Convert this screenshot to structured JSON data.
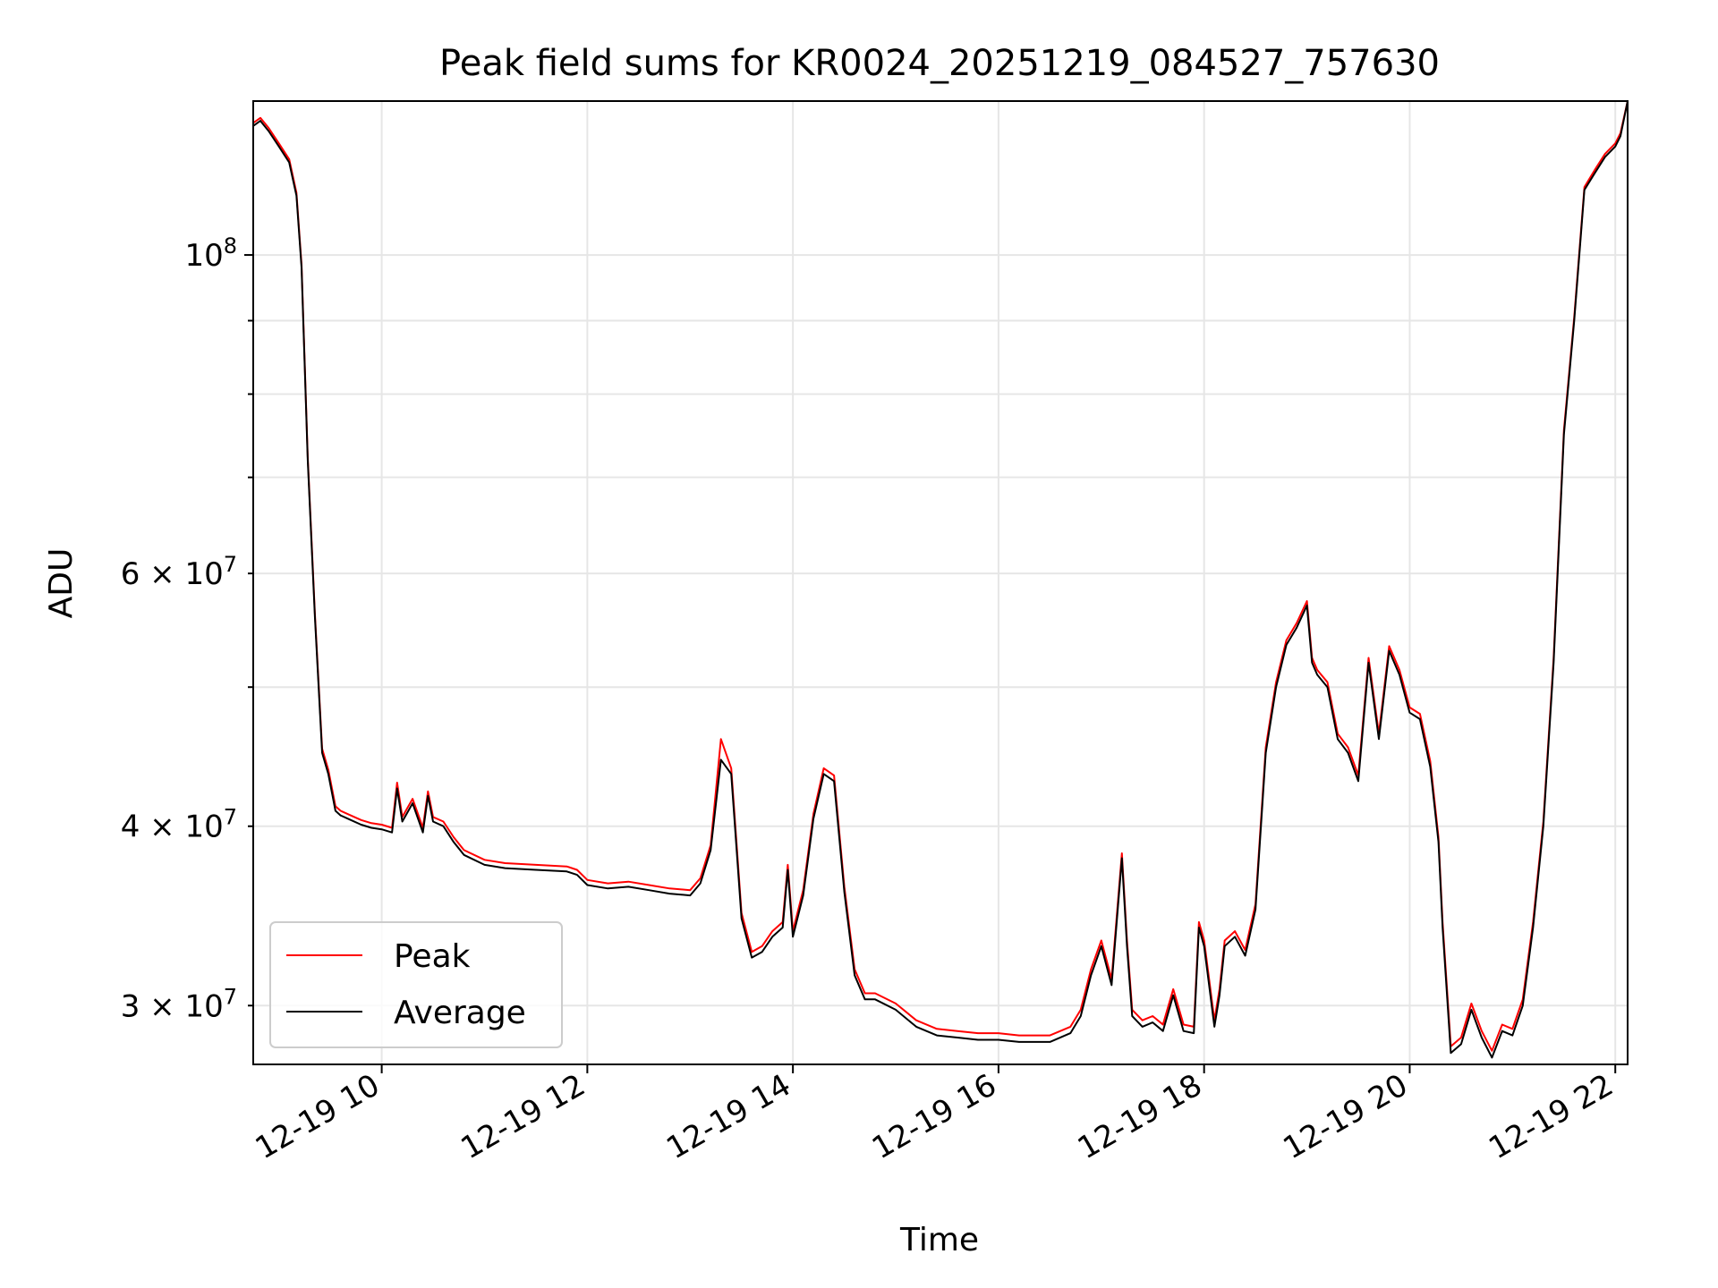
{
  "chart_data": {
    "type": "line",
    "title": "Peak field sums for KR0024_20251219_084527_757630",
    "xlabel": "Time",
    "ylabel": "ADU",
    "y_scale": "log",
    "x_range_hours": [
      8.75,
      22.12
    ],
    "ylim": [
      27300000,
      128000000
    ],
    "grid": true,
    "legend": {
      "position": "lower-left",
      "entries": [
        "Peak",
        "Average"
      ]
    },
    "colors": {
      "peak": "#ff0000",
      "average": "#000000",
      "grid": "#e6e6e6"
    },
    "xticks": [
      {
        "hour": 10,
        "label": "12-19 10"
      },
      {
        "hour": 12,
        "label": "12-19 12"
      },
      {
        "hour": 14,
        "label": "12-19 14"
      },
      {
        "hour": 16,
        "label": "12-19 16"
      },
      {
        "hour": 18,
        "label": "12-19 18"
      },
      {
        "hour": 20,
        "label": "12-19 20"
      },
      {
        "hour": 22,
        "label": "12-19 22"
      }
    ],
    "yticks_major": [
      {
        "value": 100000000,
        "base": "10",
        "exp": "8"
      }
    ],
    "yticks_minor": [
      {
        "value": 30000000,
        "mant": "3",
        "exp": "7"
      },
      {
        "value": 40000000,
        "mant": "4",
        "exp": "7"
      },
      {
        "value": 60000000,
        "mant": "6",
        "exp": "7"
      }
    ],
    "yticks_minor_unlabeled": [
      50000000,
      70000000,
      80000000,
      90000000
    ],
    "series": [
      {
        "name": "Average",
        "x": [
          8.75,
          8.82,
          8.9,
          9.0,
          9.1,
          9.17,
          9.22,
          9.28,
          9.35,
          9.42,
          9.48,
          9.55,
          9.6,
          9.7,
          9.8,
          9.9,
          10.0,
          10.1,
          10.15,
          10.2,
          10.3,
          10.4,
          10.45,
          10.5,
          10.6,
          10.7,
          10.8,
          11.0,
          11.2,
          11.5,
          11.8,
          11.9,
          12.0,
          12.2,
          12.4,
          12.6,
          12.8,
          13.0,
          13.1,
          13.2,
          13.3,
          13.4,
          13.5,
          13.6,
          13.7,
          13.8,
          13.9,
          13.95,
          14.0,
          14.1,
          14.2,
          14.3,
          14.4,
          14.5,
          14.6,
          14.7,
          14.8,
          15.0,
          15.2,
          15.4,
          15.6,
          15.8,
          16.0,
          16.2,
          16.5,
          16.7,
          16.8,
          16.9,
          17.0,
          17.1,
          17.2,
          17.25,
          17.3,
          17.4,
          17.5,
          17.6,
          17.7,
          17.8,
          17.9,
          17.95,
          18.0,
          18.1,
          18.15,
          18.2,
          18.3,
          18.4,
          18.5,
          18.6,
          18.7,
          18.8,
          18.9,
          19.0,
          19.05,
          19.1,
          19.2,
          19.3,
          19.4,
          19.5,
          19.6,
          19.7,
          19.8,
          19.9,
          20.0,
          20.1,
          20.2,
          20.28,
          20.32,
          20.4,
          20.5,
          20.6,
          20.7,
          20.8,
          20.9,
          21.0,
          21.1,
          21.2,
          21.3,
          21.4,
          21.5,
          21.6,
          21.7,
          21.8,
          21.9,
          22.0,
          22.05,
          22.12
        ],
        "y": [
          123000000,
          124000000,
          122000000,
          119000000,
          116000000,
          110000000,
          98000000,
          72000000,
          56000000,
          45000000,
          43500000,
          41000000,
          40700000,
          40400000,
          40100000,
          39900000,
          39800000,
          39600000,
          42500000,
          40300000,
          41500000,
          39600000,
          42000000,
          40300000,
          40000000,
          39000000,
          38200000,
          37600000,
          37400000,
          37300000,
          37200000,
          37000000,
          36400000,
          36200000,
          36300000,
          36100000,
          35900000,
          35800000,
          36500000,
          38500000,
          44500000,
          43500000,
          34500000,
          32400000,
          32700000,
          33500000,
          34000000,
          37300000,
          33500000,
          35800000,
          40500000,
          43500000,
          43000000,
          36000000,
          31500000,
          30300000,
          30300000,
          29800000,
          29000000,
          28600000,
          28500000,
          28400000,
          28400000,
          28300000,
          28300000,
          28700000,
          29500000,
          31500000,
          33000000,
          31000000,
          38000000,
          33000000,
          29500000,
          29000000,
          29200000,
          28800000,
          30500000,
          28800000,
          28700000,
          34000000,
          33000000,
          29000000,
          30500000,
          33000000,
          33500000,
          32500000,
          35000000,
          45000000,
          50000000,
          53500000,
          55000000,
          57000000,
          52000000,
          51000000,
          50000000,
          46000000,
          45000000,
          43000000,
          52000000,
          46000000,
          53000000,
          51000000,
          48000000,
          47500000,
          44000000,
          39000000,
          34000000,
          27800000,
          28200000,
          29800000,
          28500000,
          27600000,
          28800000,
          28600000,
          30000000,
          34000000,
          40000000,
          52000000,
          75000000,
          90000000,
          111000000,
          114000000,
          117000000,
          119000000,
          121000000,
          128000000
        ]
      },
      {
        "name": "Peak",
        "x": [
          8.75,
          8.82,
          8.9,
          9.0,
          9.1,
          9.17,
          9.22,
          9.28,
          9.35,
          9.42,
          9.48,
          9.55,
          9.6,
          9.7,
          9.8,
          9.9,
          10.0,
          10.1,
          10.15,
          10.2,
          10.3,
          10.4,
          10.45,
          10.5,
          10.6,
          10.7,
          10.8,
          11.0,
          11.2,
          11.5,
          11.8,
          11.9,
          12.0,
          12.2,
          12.4,
          12.6,
          12.8,
          13.0,
          13.1,
          13.2,
          13.3,
          13.4,
          13.5,
          13.6,
          13.7,
          13.8,
          13.9,
          13.95,
          14.0,
          14.1,
          14.2,
          14.3,
          14.4,
          14.5,
          14.6,
          14.7,
          14.8,
          15.0,
          15.2,
          15.4,
          15.6,
          15.8,
          16.0,
          16.2,
          16.5,
          16.7,
          16.8,
          16.9,
          17.0,
          17.1,
          17.2,
          17.25,
          17.3,
          17.4,
          17.5,
          17.6,
          17.7,
          17.8,
          17.9,
          17.95,
          18.0,
          18.1,
          18.15,
          18.2,
          18.3,
          18.4,
          18.5,
          18.6,
          18.7,
          18.8,
          18.9,
          19.0,
          19.05,
          19.1,
          19.2,
          19.3,
          19.4,
          19.5,
          19.6,
          19.7,
          19.8,
          19.9,
          20.0,
          20.1,
          20.2,
          20.28,
          20.32,
          20.4,
          20.5,
          20.6,
          20.7,
          20.8,
          20.9,
          21.0,
          21.1,
          21.2,
          21.3,
          21.4,
          21.5,
          21.6,
          21.7,
          21.8,
          21.9,
          22.0,
          22.05,
          22.12
        ],
        "y": [
          123600000,
          124600000,
          122600000,
          119600000,
          116600000,
          110500000,
          98500000,
          72400000,
          56300000,
          45300000,
          43800000,
          41300000,
          41000000,
          40700000,
          40400000,
          40200000,
          40100000,
          39900000,
          42900000,
          40600000,
          41800000,
          39900000,
          42300000,
          40600000,
          40300000,
          39300000,
          38500000,
          37900000,
          37700000,
          37600000,
          37500000,
          37300000,
          36700000,
          36500000,
          36600000,
          36400000,
          36200000,
          36100000,
          36800000,
          38800000,
          46000000,
          43900000,
          34800000,
          32700000,
          33000000,
          33800000,
          34300000,
          37600000,
          33800000,
          36100000,
          40800000,
          43900000,
          43400000,
          36300000,
          31800000,
          30600000,
          30600000,
          30100000,
          29300000,
          28900000,
          28800000,
          28700000,
          28700000,
          28600000,
          28600000,
          29000000,
          29800000,
          31800000,
          33300000,
          31300000,
          38300000,
          33300000,
          29800000,
          29300000,
          29500000,
          29100000,
          30800000,
          29100000,
          29000000,
          34300000,
          33300000,
          29300000,
          30800000,
          33300000,
          33800000,
          32800000,
          35300000,
          45400000,
          50400000,
          53900000,
          55400000,
          57400000,
          52400000,
          51400000,
          50400000,
          46400000,
          45400000,
          43400000,
          52400000,
          46400000,
          53400000,
          51400000,
          48400000,
          47900000,
          44400000,
          39300000,
          34300000,
          28100000,
          28500000,
          30100000,
          28800000,
          27900000,
          29100000,
          28900000,
          30300000,
          34300000,
          40300000,
          52400000,
          75500000,
          90500000,
          111500000,
          114600000,
          117600000,
          119600000,
          121600000,
          128600000
        ]
      }
    ]
  }
}
